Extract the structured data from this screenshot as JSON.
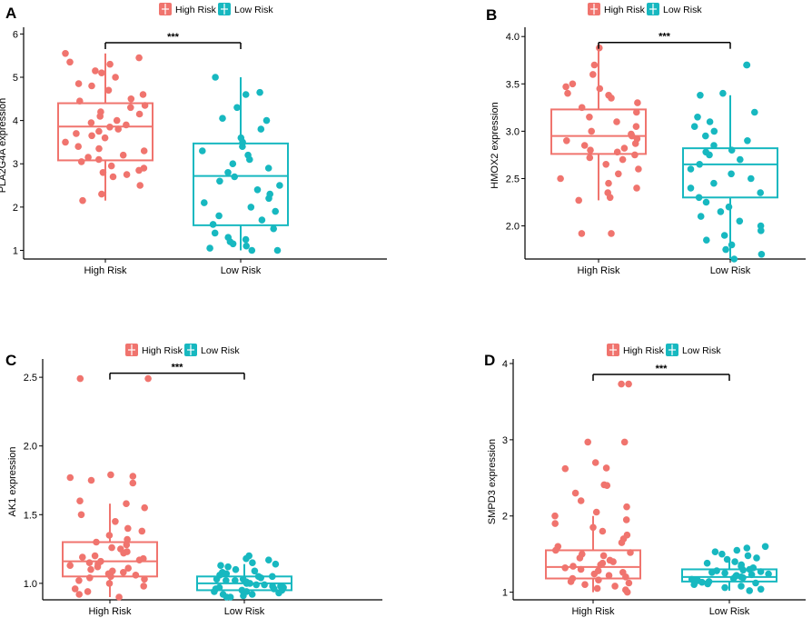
{
  "colors": {
    "high": "#F0746E",
    "low": "#17B8C0",
    "axis": "#000000"
  },
  "chart_data": [
    {
      "panel": "A",
      "type": "boxplot",
      "legend": [
        "High Risk",
        "Low Risk"
      ],
      "categories": [
        "High Risk",
        "Low Risk"
      ],
      "ylabel": "PLA2G4A expression",
      "xlabel": "",
      "ylim": [
        0.8,
        6.05
      ],
      "yticks": [
        1,
        2,
        3,
        4,
        5,
        6
      ],
      "significance": "***",
      "boxes": [
        {
          "min": 2.15,
          "q1": 3.08,
          "median": 3.86,
          "q3": 4.4,
          "max": 5.55
        },
        {
          "min": 1.0,
          "q1": 1.58,
          "median": 2.72,
          "q3": 3.47,
          "max": 5.0
        }
      ],
      "points": [
        [
          5.55,
          5.45,
          5.35,
          5.3,
          5.15,
          5.1,
          5.0,
          4.85,
          4.8,
          4.7,
          4.6,
          4.5,
          4.45,
          4.35,
          4.3,
          4.2,
          4.15,
          4.1,
          4.0,
          3.95,
          3.9,
          3.85,
          3.8,
          3.75,
          3.7,
          3.65,
          3.6,
          3.5,
          3.4,
          3.35,
          3.3,
          3.2,
          3.15,
          3.1,
          3.05,
          2.95,
          2.9,
          2.85,
          2.8,
          2.75,
          2.7,
          2.5,
          2.3,
          2.15
        ],
        [
          5.0,
          4.65,
          4.6,
          4.3,
          4.05,
          4.0,
          3.8,
          3.6,
          3.5,
          3.4,
          3.3,
          3.2,
          3.1,
          3.0,
          2.9,
          2.8,
          2.7,
          2.6,
          2.5,
          2.4,
          2.3,
          2.2,
          2.1,
          2.0,
          1.9,
          1.8,
          1.7,
          1.6,
          1.5,
          1.4,
          1.3,
          1.25,
          1.2,
          1.15,
          1.1,
          1.05,
          1.0,
          1.0
        ]
      ]
    },
    {
      "panel": "B",
      "type": "boxplot",
      "legend": [
        "High Risk",
        "Low Risk"
      ],
      "categories": [
        "High Risk",
        "Low Risk"
      ],
      "ylabel": "HMOX2 expression",
      "xlabel": "",
      "ylim": [
        1.65,
        4.05
      ],
      "yticks": [
        2.0,
        2.5,
        3.0,
        3.5,
        4.0
      ],
      "significance": "***",
      "boxes": [
        {
          "min": 2.27,
          "q1": 2.76,
          "median": 2.95,
          "q3": 3.23,
          "max": 3.85
        },
        {
          "min": 1.65,
          "q1": 2.3,
          "median": 2.65,
          "q3": 2.82,
          "max": 3.38
        }
      ],
      "points": [
        [
          3.88,
          3.7,
          3.6,
          3.5,
          3.47,
          3.45,
          3.4,
          3.38,
          3.35,
          3.3,
          3.25,
          3.2,
          3.15,
          3.1,
          3.05,
          3.0,
          2.97,
          2.95,
          2.92,
          2.9,
          2.87,
          2.85,
          2.82,
          2.8,
          2.78,
          2.75,
          2.72,
          2.7,
          2.65,
          2.6,
          2.55,
          2.5,
          2.45,
          2.4,
          2.35,
          2.3,
          2.27,
          1.92,
          1.92
        ],
        [
          3.7,
          3.7,
          3.4,
          3.38,
          3.2,
          3.15,
          3.1,
          3.05,
          3.0,
          2.95,
          2.9,
          2.85,
          2.8,
          2.78,
          2.75,
          2.7,
          2.65,
          2.6,
          2.55,
          2.5,
          2.45,
          2.4,
          2.35,
          2.3,
          2.25,
          2.2,
          2.15,
          2.1,
          2.05,
          2.0,
          1.95,
          1.9,
          1.85,
          1.8,
          1.75,
          1.7,
          1.65
        ]
      ]
    },
    {
      "panel": "C",
      "type": "boxplot",
      "legend": [
        "High Risk",
        "Low Risk"
      ],
      "categories": [
        "High Risk",
        "Low Risk"
      ],
      "ylabel": "AK1 expression",
      "xlabel": "",
      "ylim": [
        0.88,
        2.6
      ],
      "yticks": [
        1.0,
        1.5,
        2.0,
        2.5
      ],
      "significance": "***",
      "boxes": [
        {
          "min": 0.9,
          "q1": 1.05,
          "median": 1.16,
          "q3": 1.3,
          "max": 1.58
        },
        {
          "min": 0.9,
          "q1": 0.95,
          "median": 1.0,
          "q3": 1.05,
          "max": 1.14
        }
      ],
      "points": [
        [
          2.49,
          2.49,
          1.79,
          1.78,
          1.77,
          1.75,
          1.73,
          1.6,
          1.58,
          1.55,
          1.5,
          1.45,
          1.4,
          1.38,
          1.35,
          1.32,
          1.3,
          1.28,
          1.26,
          1.25,
          1.23,
          1.22,
          1.2,
          1.19,
          1.18,
          1.17,
          1.16,
          1.15,
          1.14,
          1.13,
          1.12,
          1.11,
          1.1,
          1.09,
          1.08,
          1.07,
          1.06,
          1.05,
          1.04,
          1.03,
          1.02,
          1.0,
          0.98,
          0.96,
          0.94,
          0.92,
          0.9
        ],
        [
          1.2,
          1.18,
          1.17,
          1.15,
          1.14,
          1.13,
          1.12,
          1.1,
          1.09,
          1.08,
          1.07,
          1.06,
          1.05,
          1.05,
          1.04,
          1.03,
          1.03,
          1.02,
          1.02,
          1.01,
          1.0,
          1.0,
          0.99,
          0.99,
          0.98,
          0.98,
          0.97,
          0.97,
          0.96,
          0.96,
          0.95,
          0.95,
          0.94,
          0.94,
          0.93,
          0.92,
          0.92,
          0.91,
          0.9,
          0.9
        ]
      ]
    },
    {
      "panel": "D",
      "type": "boxplot",
      "legend": [
        "High Risk",
        "Low Risk"
      ],
      "categories": [
        "High Risk",
        "Low Risk"
      ],
      "ylabel": "SMPD3 expression",
      "xlabel": "",
      "ylim": [
        0.9,
        4.0
      ],
      "yticks": [
        1,
        2,
        3,
        4
      ],
      "significance": "***",
      "boxes": [
        {
          "min": 1.0,
          "q1": 1.18,
          "median": 1.33,
          "q3": 1.55,
          "max": 2.0
        },
        {
          "min": 1.02,
          "q1": 1.14,
          "median": 1.2,
          "q3": 1.3,
          "max": 1.45
        }
      ],
      "points": [
        [
          3.73,
          3.73,
          2.97,
          2.97,
          2.7,
          2.63,
          2.62,
          2.41,
          2.4,
          2.3,
          2.2,
          2.12,
          2.05,
          2.0,
          1.95,
          1.9,
          1.85,
          1.8,
          1.75,
          1.7,
          1.65,
          1.6,
          1.55,
          1.52,
          1.5,
          1.48,
          1.45,
          1.42,
          1.4,
          1.38,
          1.36,
          1.34,
          1.32,
          1.3,
          1.28,
          1.26,
          1.24,
          1.22,
          1.2,
          1.18,
          1.16,
          1.14,
          1.12,
          1.1,
          1.08,
          1.05,
          1.03,
          1.0
        ],
        [
          1.6,
          1.58,
          1.55,
          1.53,
          1.5,
          1.48,
          1.45,
          1.43,
          1.4,
          1.38,
          1.36,
          1.34,
          1.32,
          1.3,
          1.29,
          1.28,
          1.27,
          1.26,
          1.25,
          1.24,
          1.23,
          1.22,
          1.21,
          1.2,
          1.19,
          1.18,
          1.17,
          1.16,
          1.15,
          1.14,
          1.13,
          1.12,
          1.11,
          1.1,
          1.08,
          1.06,
          1.04,
          1.02
        ]
      ]
    }
  ]
}
